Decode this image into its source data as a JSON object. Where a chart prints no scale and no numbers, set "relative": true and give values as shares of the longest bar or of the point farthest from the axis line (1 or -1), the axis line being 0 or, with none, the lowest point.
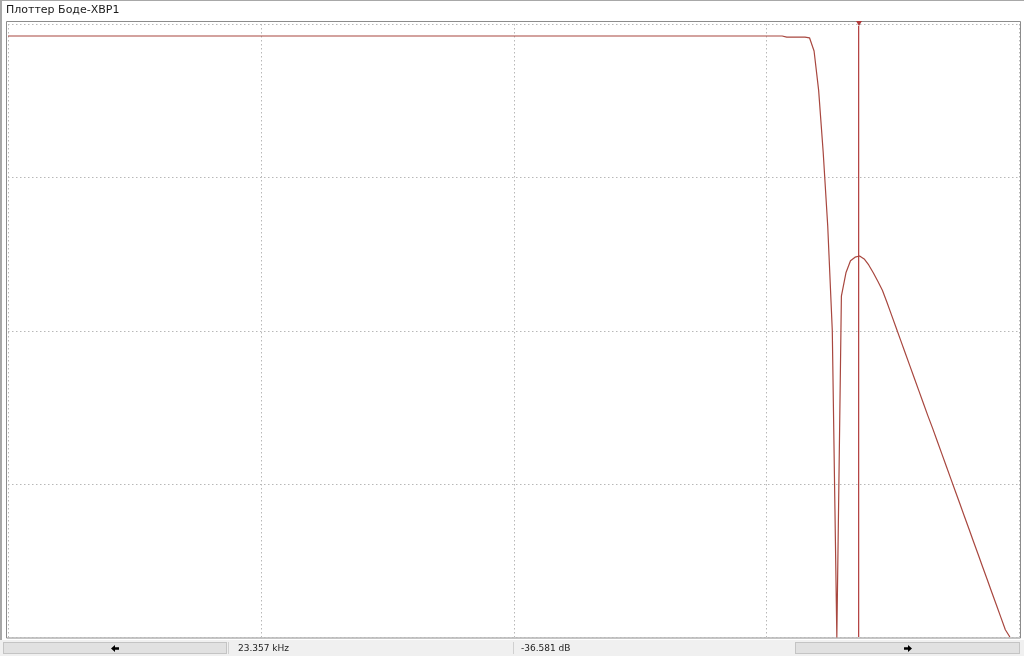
{
  "chart_data": {
    "type": "line",
    "title": "Плоттер Боде-XBP1",
    "categories": [
      null,
      null,
      null,
      null,
      null,
      null,
      null,
      null,
      null,
      null,
      null,
      null,
      null,
      null,
      null,
      null,
      null,
      null,
      null,
      null,
      null,
      null,
      null,
      null,
      null,
      null,
      null,
      null,
      null,
      null,
      null,
      null,
      null,
      null,
      null,
      null,
      null,
      null,
      null,
      null,
      null,
      null,
      null,
      null,
      null,
      null,
      null,
      null,
      null,
      null,
      null,
      null,
      null,
      null,
      null,
      null,
      null,
      null,
      null,
      null,
      null,
      null,
      null,
      null,
      null,
      null,
      null,
      null,
      null,
      null,
      null,
      null,
      null,
      null,
      null,
      null,
      null,
      null,
      null,
      null,
      null,
      null,
      null,
      null,
      null,
      null,
      null,
      null,
      null,
      null,
      null,
      null,
      null,
      null,
      null,
      null,
      null,
      null,
      null,
      null,
      null,
      null,
      null,
      null,
      null,
      null,
      null,
      null,
      null,
      null,
      null,
      null,
      null,
      null,
      null,
      null,
      null,
      null,
      null,
      null,
      null,
      null,
      null,
      null,
      null,
      null,
      null,
      null,
      null,
      null,
      null,
      null,
      null,
      null,
      null,
      null,
      null,
      null,
      null,
      null,
      null,
      null,
      null,
      null,
      null,
      null,
      null,
      null,
      null,
      null,
      null,
      null,
      null,
      null,
      null,
      null,
      null,
      null,
      null,
      null,
      null,
      null,
      null,
      null,
      null,
      null,
      null,
      null,
      null,
      null,
      null,
      null,
      null,
      null,
      null,
      null,
      null,
      null,
      null,
      null,
      null,
      null,
      null,
      null,
      null,
      null,
      null,
      null,
      null,
      null,
      null,
      null,
      null,
      null,
      null,
      null,
      null,
      null,
      null,
      null,
      null,
      null,
      null,
      null,
      null,
      null,
      null,
      null,
      null,
      null,
      null,
      null,
      null,
      null,
      null,
      null,
      null,
      null,
      null,
      null,
      null,
      null,
      null
    ],
    "values": [
      1,
      1,
      1,
      1,
      1,
      1,
      1,
      1,
      1,
      1,
      1,
      1,
      1,
      1,
      1,
      1,
      1,
      1,
      1,
      1,
      1,
      1,
      1,
      1,
      1,
      1,
      1,
      1,
      1,
      1,
      1,
      1,
      1,
      1,
      1,
      1,
      1,
      1,
      1,
      1,
      1,
      1,
      1,
      1,
      1,
      1,
      1,
      1,
      1,
      1,
      1,
      1,
      1,
      1,
      1,
      1,
      1,
      1,
      1,
      1,
      1,
      1,
      1,
      1,
      1,
      1,
      1,
      1,
      1,
      1,
      1,
      1,
      1,
      1,
      1,
      1,
      1,
      1,
      1,
      1,
      1,
      1,
      1,
      1,
      1,
      1,
      1,
      1,
      1,
      1,
      1,
      1,
      1,
      1,
      1,
      1,
      1,
      1,
      1,
      1,
      1,
      1,
      1,
      1,
      1,
      1,
      1,
      1,
      1,
      1,
      1,
      1,
      1,
      1,
      1,
      1,
      1,
      1,
      1,
      1,
      1,
      1,
      1,
      1,
      1,
      1,
      1,
      1,
      1,
      1,
      1,
      1,
      1,
      1,
      1,
      1,
      1,
      1,
      1,
      1,
      1,
      1,
      1,
      1,
      1,
      1,
      1,
      1,
      1,
      1,
      1,
      1,
      1,
      1,
      1,
      1,
      1,
      1,
      1,
      1,
      1,
      1,
      1,
      1,
      1,
      1,
      1,
      1,
      1,
      1,
      1,
      0.998,
      0.998,
      0.998,
      0.998,
      0.998,
      0.997,
      0.975,
      0.91,
      0.807,
      0.684,
      0.51,
      0,
      0.567,
      0.606,
      0.626,
      0.632,
      0.634,
      0.629,
      0.619,
      0.606,
      0.592,
      0.577,
      0.557,
      0.536,
      0.515,
      0.494,
      0.473,
      0.452,
      0.431,
      0.41,
      0.389,
      0.368,
      0.348,
      0.327,
      0.306,
      0.285,
      0.264,
      0.243,
      0.222,
      0.201,
      0.18,
      0.159,
      0.138,
      0.117,
      0.096,
      0.075,
      0.054,
      0.033,
      0.012,
      0,
      null,
      null
    ],
    "color": "#a8473f",
    "relative": true,
    "grid": true,
    "tick_labels": false,
    "annotations": [
      "23.357 kHz",
      "-36.581 dB"
    ]
  }
}
